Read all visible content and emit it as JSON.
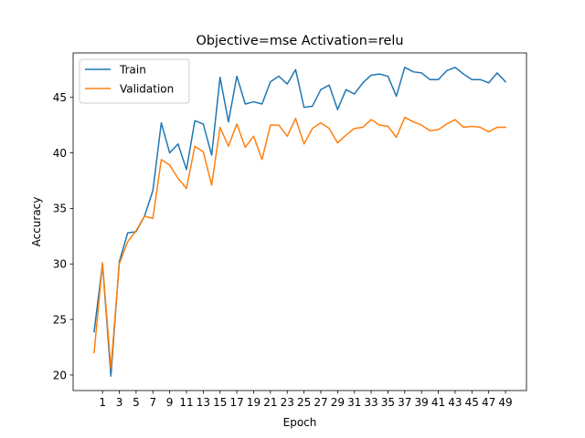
{
  "chart_data": {
    "type": "line",
    "title": "Objective=mse Activation=relu",
    "xlabel": "Epoch",
    "ylabel": "Accuracy",
    "xlim": [
      -2.5,
      51.5
    ],
    "ylim": [
      18.6,
      49.0
    ],
    "xticks": [
      1,
      3,
      5,
      7,
      9,
      11,
      13,
      15,
      17,
      19,
      21,
      23,
      25,
      27,
      29,
      31,
      33,
      35,
      37,
      39,
      41,
      43,
      45,
      47,
      49
    ],
    "yticks": [
      20,
      25,
      30,
      35,
      40,
      45
    ],
    "legend_position": "upper-left",
    "grid": false,
    "x": [
      0,
      1,
      2,
      3,
      4,
      5,
      6,
      7,
      8,
      9,
      10,
      11,
      12,
      13,
      14,
      15,
      16,
      17,
      18,
      19,
      20,
      21,
      22,
      23,
      24,
      25,
      26,
      27,
      28,
      29,
      30,
      31,
      32,
      33,
      34,
      35,
      36,
      37,
      38,
      39,
      40,
      41,
      42,
      43,
      44,
      45,
      46,
      47,
      48,
      49
    ],
    "series": [
      {
        "name": "Train",
        "color": "#1f77b4",
        "values": [
          23.9,
          30.0,
          19.9,
          30.2,
          32.8,
          32.9,
          34.3,
          36.6,
          42.7,
          40.0,
          40.8,
          38.5,
          42.9,
          42.6,
          39.8,
          46.8,
          42.8,
          46.9,
          44.4,
          44.6,
          44.4,
          46.4,
          46.9,
          46.2,
          47.5,
          44.1,
          44.2,
          45.7,
          46.1,
          43.9,
          45.7,
          45.3,
          46.3,
          47.0,
          47.1,
          46.9,
          45.1,
          47.7,
          47.3,
          47.2,
          46.6,
          46.6,
          47.4,
          47.7,
          47.1,
          46.6,
          46.6,
          46.3,
          47.2,
          46.4
        ]
      },
      {
        "name": "Validation",
        "color": "#ff7f0e",
        "values": [
          22.0,
          30.1,
          20.6,
          30.0,
          32.0,
          33.0,
          34.3,
          34.1,
          39.4,
          38.9,
          37.7,
          36.8,
          40.6,
          40.1,
          37.1,
          42.3,
          40.6,
          42.6,
          40.5,
          41.5,
          39.4,
          42.5,
          42.5,
          41.5,
          43.1,
          40.8,
          42.2,
          42.7,
          42.2,
          40.9,
          41.6,
          42.2,
          42.3,
          43.0,
          42.5,
          42.4,
          41.4,
          43.2,
          42.8,
          42.5,
          42.0,
          42.1,
          42.6,
          43.0,
          42.3,
          42.4,
          42.3,
          41.9,
          42.3,
          42.3
        ]
      }
    ]
  }
}
